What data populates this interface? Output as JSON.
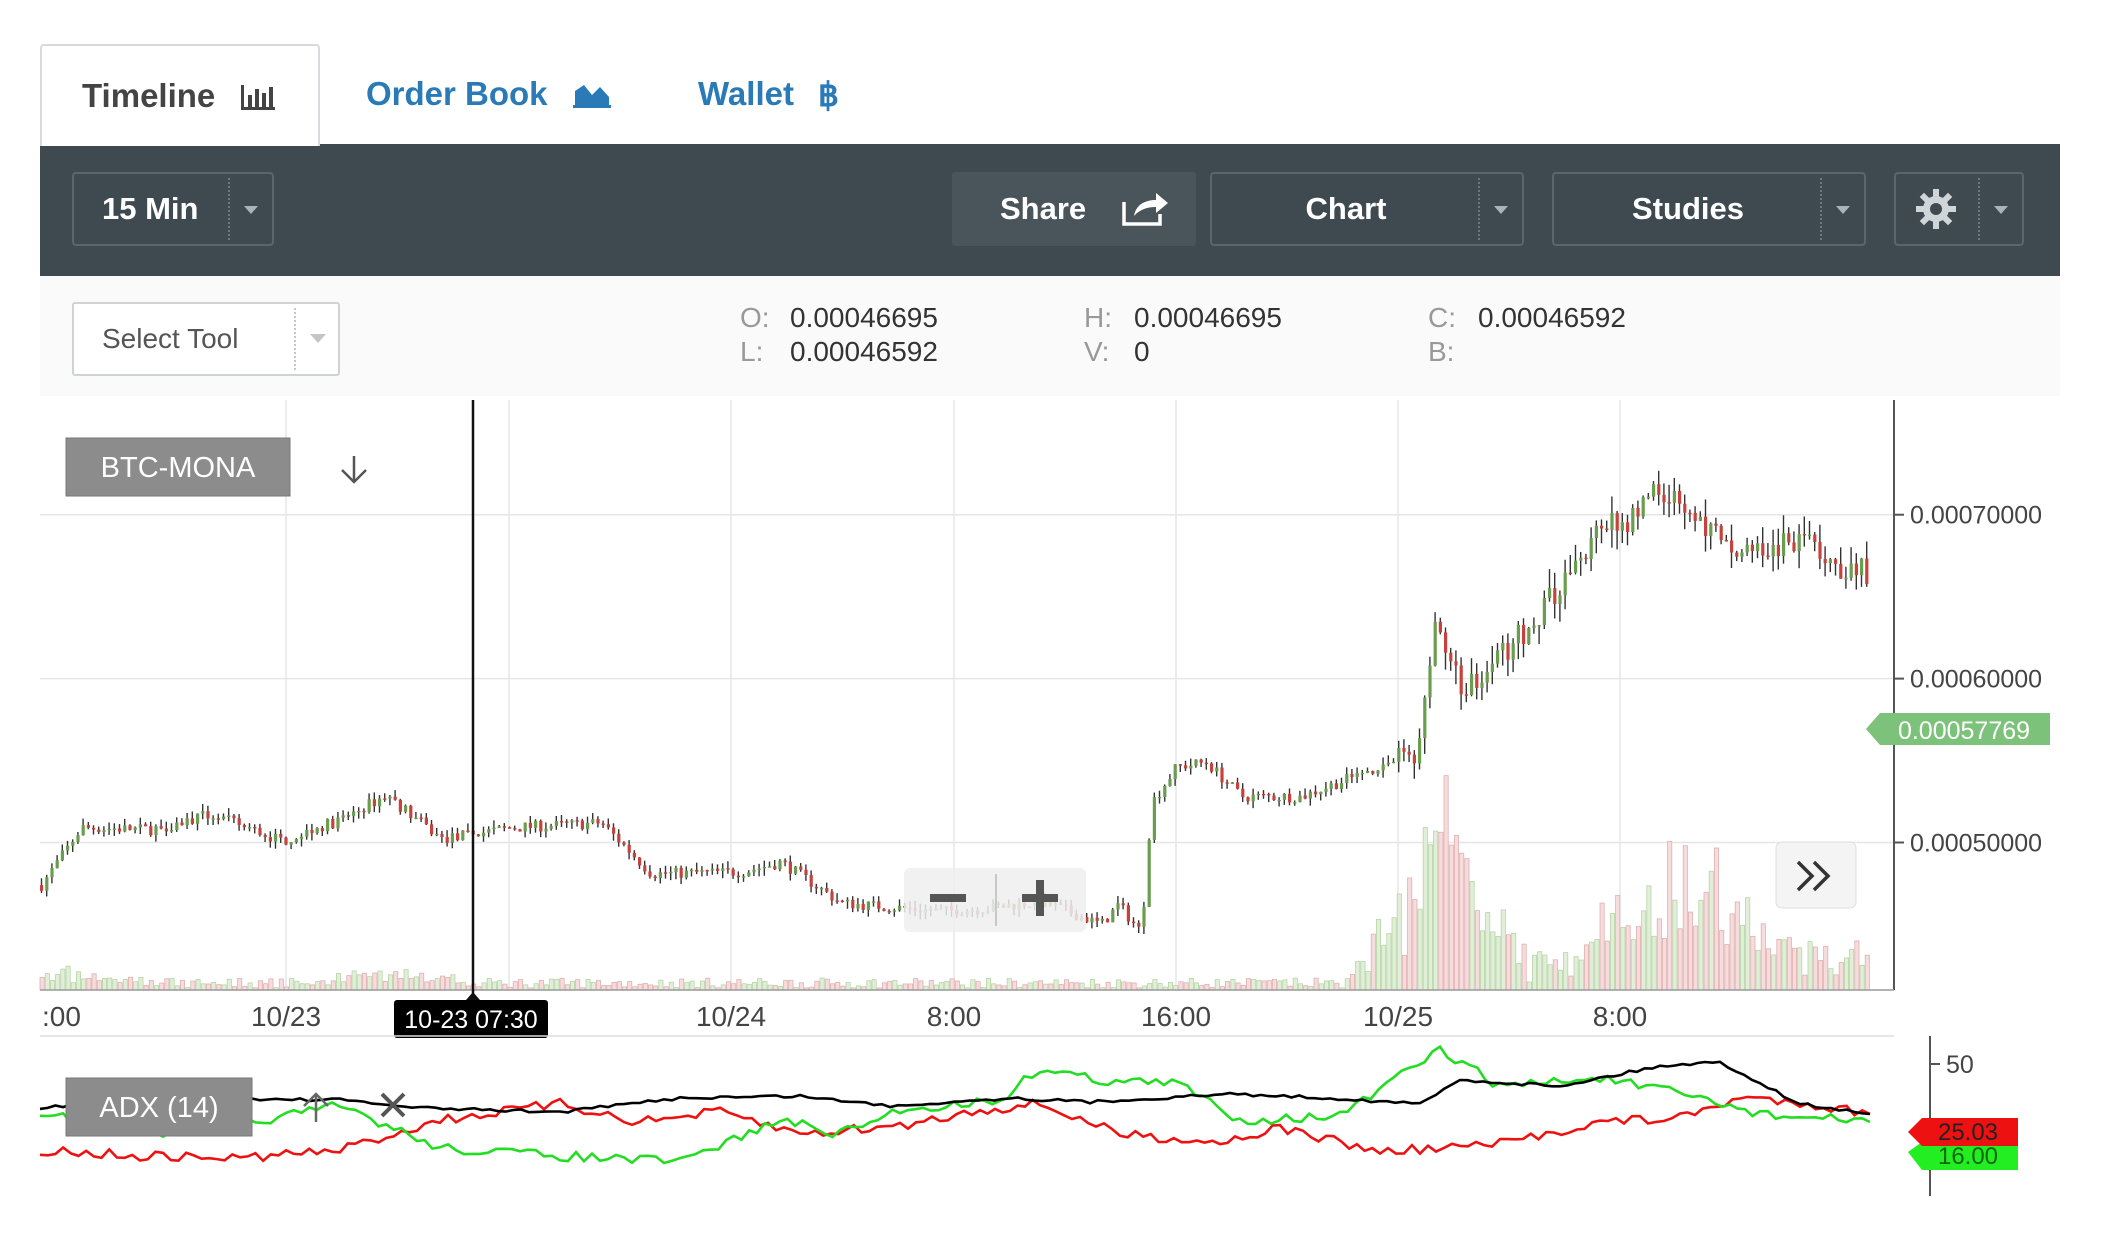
{
  "tabs": [
    {
      "label": "Timeline",
      "icon": "bar-chart-icon",
      "active": true
    },
    {
      "label": "Order Book",
      "icon": "area-chart-icon",
      "active": false
    },
    {
      "label": "Wallet",
      "icon": "bitcoin-icon",
      "active": false
    }
  ],
  "toolbar": {
    "interval": "15 Min",
    "share_label": "Share",
    "chart_label": "Chart",
    "studies_label": "Studies",
    "settings_icon": "gear-icon"
  },
  "info": {
    "select_tool_placeholder": "Select Tool",
    "o_key": "O:",
    "o_val": "0.00046695",
    "h_key": "H:",
    "h_val": "0.00046695",
    "c_key": "C:",
    "c_val": "0.00046592",
    "l_key": "L:",
    "l_val": "0.00046592",
    "v_key": "V:",
    "v_val": "0",
    "b_key": "B:",
    "b_val": ""
  },
  "chart": {
    "symbol": "BTC-MONA",
    "current_price": "0.00057769",
    "crosshair_label": "10-23 07:30",
    "indicator": "ADX (14)",
    "adx_red_value": "25.03",
    "adx_green_value": "16.00"
  },
  "colors": {
    "up": "#6a9e4f",
    "down": "#c8423c",
    "accent_link": "#2a7ab7",
    "toolbar_bg": "#3f4a50",
    "price_badge": "#7cc27a",
    "adx": "#000000",
    "di_plus": "#22dd22",
    "di_minus": "#ee1111"
  },
  "chart_data": {
    "type": "candlestick",
    "y_ticks": [
      "0.00070000",
      "0.00060000",
      "0.00050000"
    ],
    "x_ticks": [
      ":00",
      "10/23",
      "16:00",
      "10/24",
      "8:00",
      "16:00",
      "10/25",
      "8:00"
    ],
    "ylim": [
      0.00041,
      0.00077
    ],
    "anchors": [
      [
        0,
        0.000474
      ],
      [
        40,
        0.000509
      ],
      [
        110,
        0.000508
      ],
      [
        170,
        0.000517
      ],
      [
        240,
        0.000501
      ],
      [
        300,
        0.000514
      ],
      [
        345,
        0.000529
      ],
      [
        400,
        0.000502
      ],
      [
        470,
        0.000509
      ],
      [
        560,
        0.000512
      ],
      [
        610,
        0.000481
      ],
      [
        700,
        0.000482
      ],
      [
        740,
        0.000488
      ],
      [
        800,
        0.000463
      ],
      [
        900,
        0.000458
      ],
      [
        950,
        0.00046
      ],
      [
        1000,
        0.000464
      ],
      [
        1060,
        0.00045
      ],
      [
        1077,
        0.000462
      ],
      [
        1100,
        0.000445
      ],
      [
        1110,
        0.000524
      ],
      [
        1135,
        0.000546
      ],
      [
        1165,
        0.000549
      ],
      [
        1200,
        0.000528
      ],
      [
        1260,
        0.000528
      ],
      [
        1320,
        0.000542
      ],
      [
        1377,
        0.000556
      ],
      [
        1395,
        0.000637
      ],
      [
        1420,
        0.000593
      ],
      [
        1460,
        0.000614
      ],
      [
        1500,
        0.000639
      ],
      [
        1560,
        0.000693
      ],
      [
        1590,
        0.000698
      ],
      [
        1610,
        0.000715
      ],
      [
        1640,
        0.00071
      ],
      [
        1680,
        0.000682
      ],
      [
        1710,
        0.000672
      ],
      [
        1750,
        0.000685
      ],
      [
        1800,
        0.000669
      ],
      [
        1830,
        0.000666
      ]
    ],
    "volume_bursts": [
      [
        20,
        0.05
      ],
      [
        350,
        0.05
      ],
      [
        1390,
        0.42
      ],
      [
        1400,
        0.3
      ],
      [
        1590,
        0.2
      ],
      [
        1640,
        0.2
      ],
      [
        1680,
        0.26
      ]
    ],
    "adx_ticks": [
      "50"
    ],
    "adx_series": {
      "adx": [
        [
          0,
          68
        ],
        [
          100,
          58
        ],
        [
          300,
          60
        ],
        [
          380,
          68
        ],
        [
          520,
          72
        ],
        [
          640,
          58
        ],
        [
          760,
          56
        ],
        [
          850,
          66
        ],
        [
          970,
          58
        ],
        [
          1050,
          62
        ],
        [
          1120,
          58
        ],
        [
          1190,
          54
        ],
        [
          1290,
          58
        ],
        [
          1380,
          64
        ],
        [
          1420,
          40
        ],
        [
          1520,
          46
        ],
        [
          1620,
          26
        ],
        [
          1680,
          22
        ],
        [
          1760,
          64
        ],
        [
          1830,
          74
        ]
      ],
      "di_plus": [
        [
          0,
          72
        ],
        [
          100,
          96
        ],
        [
          200,
          84
        ],
        [
          300,
          66
        ],
        [
          400,
          108
        ],
        [
          520,
          116
        ],
        [
          640,
          122
        ],
        [
          740,
          80
        ],
        [
          800,
          94
        ],
        [
          860,
          70
        ],
        [
          960,
          60
        ],
        [
          1000,
          28
        ],
        [
          1060,
          40
        ],
        [
          1140,
          44
        ],
        [
          1200,
          80
        ],
        [
          1300,
          76
        ],
        [
          1400,
          10
        ],
        [
          1460,
          46
        ],
        [
          1560,
          38
        ],
        [
          1660,
          58
        ],
        [
          1720,
          74
        ],
        [
          1830,
          82
        ]
      ],
      "di_minus": [
        [
          0,
          110
        ],
        [
          100,
          116
        ],
        [
          200,
          118
        ],
        [
          300,
          110
        ],
        [
          400,
          80
        ],
        [
          520,
          64
        ],
        [
          600,
          82
        ],
        [
          680,
          72
        ],
        [
          760,
          94
        ],
        [
          860,
          86
        ],
        [
          940,
          70
        ],
        [
          1000,
          64
        ],
        [
          1080,
          94
        ],
        [
          1180,
          102
        ],
        [
          1240,
          88
        ],
        [
          1340,
          112
        ],
        [
          1460,
          104
        ],
        [
          1560,
          82
        ],
        [
          1640,
          78
        ],
        [
          1700,
          58
        ],
        [
          1760,
          62
        ],
        [
          1830,
          74
        ]
      ]
    }
  }
}
